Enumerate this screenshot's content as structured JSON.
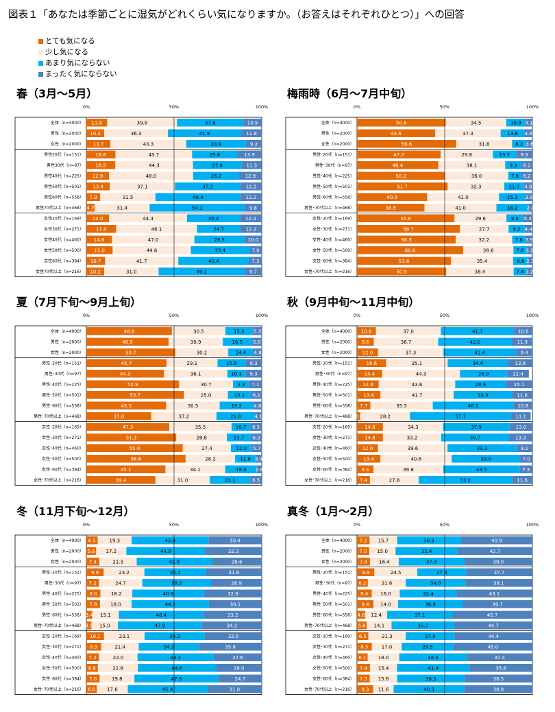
{
  "page_title": "図表１「あなたは季節ごとに湿気がどれくらい気になりますか。（お答えはそれぞれひとつ）」への回答",
  "legend": [
    {
      "label": "とても気になる",
      "color": "#E36C09"
    },
    {
      "label": "少し気になる",
      "color": "#FDE9D9"
    },
    {
      "label": "あまり気にならない",
      "color": "#00B0F0"
    },
    {
      "label": "まったく気にならない",
      "color": "#4F81BD"
    }
  ],
  "chart_data": [
    {
      "type": "bar",
      "stacked": true,
      "orientation": "horizontal",
      "title": "春（3月～5月）",
      "ticks": [
        "0%",
        "50%",
        "100%"
      ],
      "xlim": [
        0,
        100
      ],
      "grid": true,
      "categories": [
        "全体（n=4000）",
        "男性（n=2000）",
        "女性（n=2000）",
        "男性20代（n=151）",
        "男性30代（n=97）",
        "男性40代（n=225）",
        "男性50代（n=501）",
        "男性60代（n=558）",
        "男性70代以上（n=468）",
        "女性20代（n=169）",
        "女性30代（n=271）",
        "女性40代（n=460）",
        "女性50代（n=500）",
        "女性60代（n=384）",
        "女性70代以上（n=216）"
      ],
      "groups": [
        [
          0,
          2
        ],
        [
          3,
          8
        ],
        [
          9,
          14
        ]
      ],
      "series": [
        {
          "name": "とても気になる",
          "values": [
            11.9,
            10.2,
            13.7,
            16.6,
            16.5,
            12.9,
            13.4,
            7.9,
            4.7,
            13.0,
            17.0,
            14.6,
            15.0,
            10.7,
            10.2
          ]
        },
        {
          "name": "少し気になる",
          "values": [
            39.8,
            36.3,
            43.3,
            43.7,
            44.3,
            48.0,
            37.1,
            31.5,
            31.4,
            44.4,
            46.1,
            47.0,
            44.6,
            41.7,
            31.0
          ]
        },
        {
          "name": "あまり気にならない",
          "values": [
            37.8,
            41.8,
            33.9,
            25.8,
            27.8,
            26.2,
            37.3,
            48.4,
            54.1,
            30.2,
            24.7,
            28.5,
            33.4,
            40.4,
            49.1
          ]
        },
        {
          "name": "まったく気にならない",
          "values": [
            10.5,
            11.8,
            9.2,
            13.9,
            11.3,
            12.9,
            12.2,
            12.2,
            9.8,
            12.4,
            12.2,
            10.0,
            7.0,
            7.3,
            9.7
          ]
        }
      ]
    },
    {
      "type": "bar",
      "stacked": true,
      "orientation": "horizontal",
      "title": "梅雨時（6月～7月中旬）",
      "ticks": [
        "0%",
        "50%",
        "100%"
      ],
      "xlim": [
        0,
        100
      ],
      "grid": true,
      "categories": [
        "全体（n=4000）",
        "男性（n=2000）",
        "女性（n=2000）",
        "男性･20代（n=151）",
        "男性･30代（n=97）",
        "男性･40代（n=225）",
        "男性･50代（n=501）",
        "男性･60代（n=558）",
        "男性･70代以上（n=468）",
        "女性･20代（n=169）",
        "女性･30代（n=271）",
        "女性･40代（n=460）",
        "女性･50代（n=500）",
        "女性･60代（n=384）",
        "女性･70代以上（n=216）"
      ],
      "groups": [
        [
          0,
          2
        ],
        [
          3,
          8
        ],
        [
          9,
          14
        ]
      ],
      "series": [
        {
          "name": "とても気になる",
          "values": [
            50.6,
            44.6,
            56.6,
            47.7,
            46.4,
            50.2,
            51.7,
            40.0,
            38.5,
            55.6,
            58.7,
            56.3,
            60.6,
            53.6,
            50.9
          ]
        },
        {
          "name": "少し気になる",
          "values": [
            34.5,
            37.3,
            31.8,
            29.8,
            38.1,
            36.0,
            32.3,
            41.0,
            41.0,
            29.6,
            27.7,
            32.2,
            28.6,
            35.4,
            38.4
          ]
        },
        {
          "name": "あまり気にならない",
          "values": [
            10.9,
            13.6,
            8.2,
            13.2,
            9.3,
            7.6,
            11.2,
            15.1,
            18.2,
            9.5,
            9.2,
            7.6,
            7.6,
            8.6,
            7.4
          ]
        },
        {
          "name": "まったく気にならない",
          "values": [
            4.1,
            4.6,
            3.6,
            9.3,
            6.2,
            6.2,
            4.8,
            3.9,
            2.4,
            5.3,
            4.4,
            3.9,
            3.2,
            2.3,
            3.2
          ]
        }
      ]
    },
    {
      "type": "bar",
      "stacked": true,
      "orientation": "horizontal",
      "title": "夏（7月下旬～9月上旬）",
      "ticks": [
        "0%",
        "50%",
        "100%"
      ],
      "xlim": [
        0,
        100
      ],
      "grid": true,
      "categories": [
        "全体（n=4000）",
        "男性（n=2000）",
        "女性（n=2000）",
        "男性･20代（n=151）",
        "男性･30代（n=97）",
        "男性･40代（n=225）",
        "男性･50代（n=501）",
        "男性･60代（n=558）",
        "男性･70代以上（n=468）",
        "女性･20代（n=169）",
        "女性･30代（n=271）",
        "女性･40代（n=460）",
        "女性･50代（n=500）",
        "女性･60代（n=384）",
        "女性･70代以上（n=216）"
      ],
      "groups": [
        [
          0,
          2
        ],
        [
          3,
          8
        ],
        [
          9,
          14
        ]
      ],
      "series": [
        {
          "name": "とても気になる",
          "values": [
            48.8,
            46.9,
            50.7,
            45.7,
            44.3,
            52.9,
            55.7,
            45.5,
            37.0,
            47.3,
            51.3,
            55.0,
            56.6,
            45.1,
            39.4
          ]
        },
        {
          "name": "少し気になる",
          "values": [
            30.5,
            30.9,
            30.2,
            29.1,
            36.1,
            30.7,
            25.0,
            30.5,
            37.2,
            35.5,
            28.8,
            27.4,
            28.2,
            34.1,
            31.0
          ]
        },
        {
          "name": "あまり気にならない",
          "values": [
            15.5,
            16.5,
            14.4,
            15.9,
            10.3,
            9.3,
            13.2,
            19.2,
            21.8,
            10.7,
            13.7,
            12.0,
            11.8,
            18.0,
            23.1
          ]
        },
        {
          "name": "まったく気にならない",
          "values": [
            5.3,
            5.8,
            4.8,
            9.3,
            9.3,
            7.1,
            6.2,
            4.8,
            4.1,
            6.5,
            6.3,
            5.7,
            3.4,
            2.9,
            6.5
          ]
        }
      ]
    },
    {
      "type": "bar",
      "stacked": true,
      "orientation": "horizontal",
      "title": "秋（9月中旬～11月中旬）",
      "ticks": [
        "0%",
        "50%",
        "100%"
      ],
      "xlim": [
        0,
        100
      ],
      "grid": true,
      "categories": [
        "全体（n=4000）",
        "男性（n=2000）",
        "女性（n=2000）",
        "男性･20代（n=151）",
        "男性･30代（n=97）",
        "男性･40代（n=225）",
        "男性･50代（n=501）",
        "男性･60代（n=558）",
        "男性･70代以上（n=468）",
        "女性･20代（n=169）",
        "女性･30代（n=271）",
        "女性･40代（n=460）",
        "女性･50代（n=500）",
        "女性･60代（n=384）",
        "女性･70代以上（n=216）"
      ],
      "groups": [
        [
          0,
          2
        ],
        [
          3,
          8
        ],
        [
          9,
          14
        ]
      ],
      "series": [
        {
          "name": "とても気になる",
          "values": [
            10.8,
            9.6,
            12.0,
            16.6,
            14.4,
            12.4,
            13.4,
            7.7,
            2.0,
            14.8,
            14.8,
            12.0,
            13.4,
            9.4,
            7.4
          ]
        },
        {
          "name": "少し気になる",
          "values": [
            37.0,
            36.7,
            37.3,
            35.1,
            44.3,
            43.6,
            41.7,
            35.5,
            28.2,
            34.3,
            33.2,
            39.6,
            40.6,
            39.8,
            27.8
          ]
        },
        {
          "name": "あまり気にならない",
          "values": [
            41.7,
            42.0,
            41.4,
            34.4,
            26.9,
            28.9,
            33.3,
            46.1,
            57.7,
            37.9,
            38.7,
            39.3,
            39.0,
            43.5,
            53.2
          ]
        },
        {
          "name": "まったく気にならない",
          "values": [
            10.6,
            11.9,
            9.4,
            13.9,
            12.4,
            15.1,
            11.6,
            10.8,
            11.1,
            13.0,
            13.3,
            9.1,
            7.0,
            7.3,
            11.6
          ]
        }
      ]
    },
    {
      "type": "bar",
      "stacked": true,
      "orientation": "horizontal",
      "title": "冬（11月下旬～12月）",
      "ticks": [
        "0%",
        "50%",
        "100%"
      ],
      "xlim": [
        0,
        100
      ],
      "grid": true,
      "categories": [
        "全体（n=4000）",
        "男性（n=2000）",
        "女性（n=2000）",
        "男性･20代（n=151）",
        "男性･30代（n=97）",
        "男性･40代（n=225）",
        "男性･50代（n=501）",
        "男性･60代（n=558）",
        "男性･70代以上（n=468）",
        "女性･20代（n=169）",
        "女性･30代（n=271）",
        "女性･40代（n=460）",
        "女性･50代（n=500）",
        "女性･60代（n=384）",
        "女性･70代以上（n=216）"
      ],
      "groups": [
        [
          0,
          2
        ],
        [
          3,
          8
        ],
        [
          9,
          14
        ]
      ],
      "series": [
        {
          "name": "とても気になる",
          "values": [
            6.5,
            5.6,
            7.4,
            9.9,
            7.2,
            8.0,
            7.8,
            3.4,
            3.0,
            10.1,
            8.5,
            7.2,
            6.6,
            7.6,
            6.0
          ]
        },
        {
          "name": "少し気になる",
          "values": [
            19.3,
            17.2,
            21.3,
            23.2,
            24.7,
            18.2,
            18.0,
            15.1,
            15.0,
            23.1,
            21.4,
            22.0,
            22.8,
            19.8,
            17.6
          ]
        },
        {
          "name": "あまり気にならない",
          "values": [
            43.8,
            44.9,
            42.8,
            35.1,
            39.2,
            40.9,
            44.1,
            48.4,
            47.9,
            34.3,
            34.3,
            43.3,
            44.6,
            47.9,
            45.4
          ]
        },
        {
          "name": "まったく気にならない",
          "values": [
            30.4,
            32.3,
            28.6,
            31.8,
            28.9,
            32.9,
            30.1,
            33.2,
            34.2,
            32.5,
            35.8,
            27.6,
            26.0,
            24.7,
            31.0
          ]
        }
      ]
    },
    {
      "type": "bar",
      "stacked": true,
      "orientation": "horizontal",
      "title": "真冬（1月～2月）",
      "ticks": [
        "0%",
        "50%",
        "100%"
      ],
      "xlim": [
        0,
        100
      ],
      "grid": true,
      "categories": [
        "全体（n=4000）",
        "男性（n=2000）",
        "女性（n=2000）",
        "男性･20代（n=151）",
        "男性･30代（n=97）",
        "男性･40代（n=225）",
        "男性･50代（n=501）",
        "男性･60代（n=558）",
        "男性･70代以上（n=468）",
        "女性･20代（n=169）",
        "女性･30代（n=271）",
        "女性･40代（n=460）",
        "女性･50代（n=500）",
        "女性･60代（n=384）",
        "女性･70代以上（n=216）"
      ],
      "groups": [
        [
          0,
          2
        ],
        [
          3,
          8
        ],
        [
          9,
          14
        ]
      ],
      "series": [
        {
          "name": "とても気になる",
          "values": [
            7.2,
            7.0,
            7.4,
            9.9,
            6.2,
            8.4,
            9.4,
            4.8,
            5.6,
            6.5,
            8.5,
            6.1,
            7.4,
            7.3,
            9.3
          ]
        },
        {
          "name": "少し気になる",
          "values": [
            15.7,
            15.0,
            16.4,
            24.5,
            21.6,
            16.0,
            14.0,
            12.4,
            14.1,
            21.3,
            17.0,
            18.0,
            15.4,
            15.6,
            11.6
          ]
        },
        {
          "name": "あまり気にならない",
          "values": [
            36.3,
            35.4,
            37.3,
            27.8,
            34.0,
            32.4,
            36.9,
            37.1,
            35.7,
            27.8,
            29.5,
            38.5,
            41.4,
            38.5,
            40.3
          ]
        },
        {
          "name": "まったく気にならない",
          "values": [
            40.9,
            42.7,
            39.0,
            37.7,
            38.1,
            43.1,
            39.7,
            45.7,
            44.7,
            44.4,
            45.0,
            37.4,
            35.8,
            38.5,
            38.9
          ]
        }
      ]
    }
  ]
}
